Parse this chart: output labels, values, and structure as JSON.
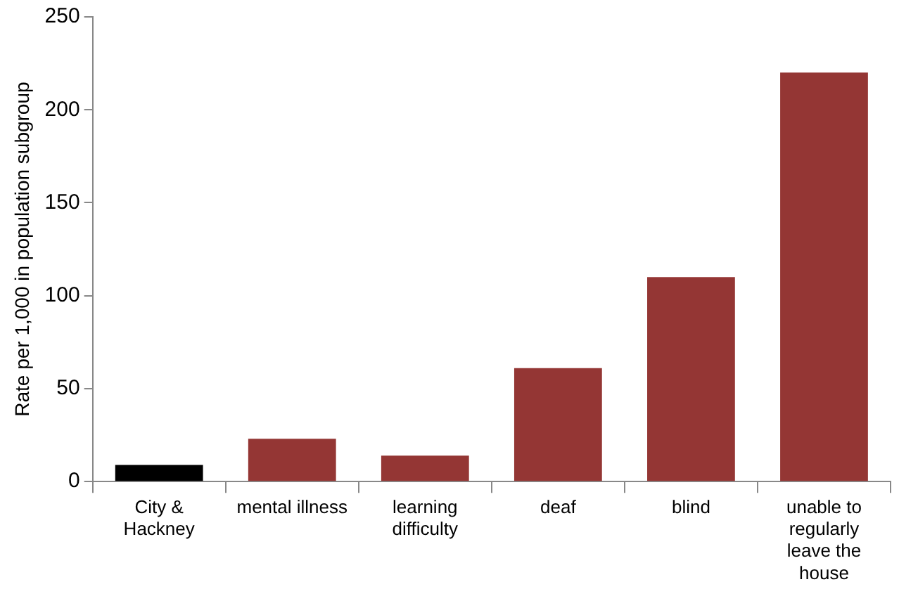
{
  "chart_data": {
    "type": "bar",
    "ylabel": "Rate per 1,000 in population subgroup",
    "categories": [
      "City & Hackney",
      "mental illness",
      "learning difficulty",
      "deaf",
      "blind",
      "unable to regularly leave the house"
    ],
    "values": [
      9,
      23,
      14,
      61,
      110,
      220
    ],
    "colors": [
      "#000000",
      "#943634",
      "#943634",
      "#943634",
      "#943634",
      "#943634"
    ],
    "ylim": [
      0,
      250
    ],
    "yticks": [
      0,
      50,
      100,
      150,
      200,
      250
    ],
    "grid": false,
    "legend": false
  }
}
